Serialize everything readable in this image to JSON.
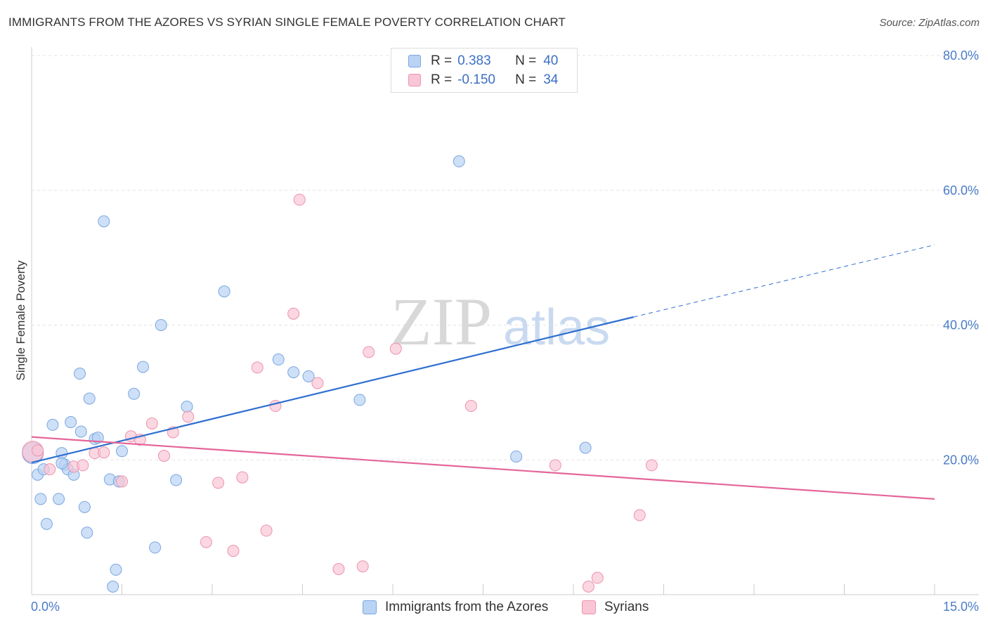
{
  "header": {
    "title": "IMMIGRANTS FROM THE AZORES VS SYRIAN SINGLE FEMALE POVERTY CORRELATION CHART",
    "source": "Source: ZipAtlas.com"
  },
  "watermark": {
    "zip": "ZIP",
    "atlas": "atlas"
  },
  "legend": {
    "series": [
      {
        "r_label": "R =",
        "r_value": "0.383",
        "n_label": "N =",
        "n_value": "40",
        "fill": "#b9d3f4",
        "stroke": "#7aa6e0"
      },
      {
        "r_label": "R =",
        "r_value": "-0.150",
        "n_label": "N =",
        "n_value": "34",
        "fill": "#f9c6d5",
        "stroke": "#ec93ae"
      }
    ]
  },
  "bottom_legend": {
    "azores": "Immigrants from the Azores",
    "syrians": "Syrians"
  },
  "colors": {
    "blue_fill": "#b9d3f4",
    "blue_stroke": "#7aa6e0",
    "blue_line": "#2e6fd0",
    "pink_fill": "#f9c6d5",
    "pink_stroke": "#ec93ae",
    "pink_line": "#e4669a",
    "grid": "#e3e3e3",
    "axis": "#cccccc"
  },
  "chart_data": {
    "type": "scatter",
    "title": "IMMIGRANTS FROM THE AZORES VS SYRIAN SINGLE FEMALE POVERTY CORRELATION CHART",
    "xlabel": "",
    "ylabel": "Single Female Poverty",
    "xlim": [
      0,
      15
    ],
    "ylim": [
      0,
      80
    ],
    "x_tick_labels": [
      {
        "value": 0,
        "label": "0.0%"
      },
      {
        "value": 15,
        "label": "15.0%"
      }
    ],
    "y_tick_labels": [
      {
        "value": 20,
        "label": "20.0%"
      },
      {
        "value": 40,
        "label": "40.0%"
      },
      {
        "value": 60,
        "label": "60.0%"
      },
      {
        "value": 80,
        "label": "80.0%"
      }
    ],
    "grid": true,
    "legend_position": "top-center",
    "series": [
      {
        "name": "Immigrants from the Azores",
        "r": 0.383,
        "n": 40,
        "points": [
          [
            0.02,
            21.0
          ],
          [
            0.1,
            17.8
          ],
          [
            0.15,
            14.2
          ],
          [
            0.2,
            18.6
          ],
          [
            0.25,
            10.5
          ],
          [
            0.35,
            25.2
          ],
          [
            0.45,
            14.2
          ],
          [
            0.5,
            21.0
          ],
          [
            0.55,
            19.3
          ],
          [
            0.6,
            18.6
          ],
          [
            0.65,
            25.6
          ],
          [
            0.7,
            17.8
          ],
          [
            0.8,
            32.8
          ],
          [
            0.82,
            24.2
          ],
          [
            0.88,
            13.0
          ],
          [
            0.92,
            9.2
          ],
          [
            0.96,
            29.1
          ],
          [
            1.05,
            23.1
          ],
          [
            1.1,
            23.3
          ],
          [
            1.2,
            55.4
          ],
          [
            1.3,
            17.1
          ],
          [
            1.4,
            3.7
          ],
          [
            1.45,
            16.8
          ],
          [
            1.5,
            21.3
          ],
          [
            1.7,
            29.8
          ],
          [
            1.85,
            33.8
          ],
          [
            2.05,
            7.0
          ],
          [
            2.15,
            40.0
          ],
          [
            2.4,
            17.0
          ],
          [
            2.58,
            27.9
          ],
          [
            3.2,
            45.0
          ],
          [
            4.1,
            34.9
          ],
          [
            4.35,
            33.0
          ],
          [
            4.6,
            32.4
          ],
          [
            5.45,
            28.9
          ],
          [
            7.1,
            64.3
          ],
          [
            8.05,
            20.5
          ],
          [
            9.2,
            21.8
          ],
          [
            1.35,
            1.2
          ],
          [
            0.5,
            19.5
          ]
        ],
        "trend": {
          "x0": 0,
          "y0": 19.6,
          "x1": 10.0,
          "y1": 41.2,
          "dash_x1": 15.0,
          "dash_y1": 51.9
        }
      },
      {
        "name": "Syrians",
        "r": -0.15,
        "n": 34,
        "points": [
          [
            0.02,
            21.2
          ],
          [
            0.3,
            18.6
          ],
          [
            0.7,
            19.0
          ],
          [
            0.85,
            19.2
          ],
          [
            1.05,
            21.0
          ],
          [
            1.2,
            21.1
          ],
          [
            1.5,
            16.8
          ],
          [
            1.65,
            23.5
          ],
          [
            1.8,
            23.0
          ],
          [
            2.0,
            25.4
          ],
          [
            2.2,
            20.6
          ],
          [
            2.35,
            24.1
          ],
          [
            2.6,
            26.4
          ],
          [
            2.9,
            7.8
          ],
          [
            3.1,
            16.6
          ],
          [
            3.35,
            6.5
          ],
          [
            3.5,
            17.4
          ],
          [
            3.75,
            33.7
          ],
          [
            3.9,
            9.5
          ],
          [
            4.05,
            28.0
          ],
          [
            4.35,
            41.7
          ],
          [
            4.45,
            58.6
          ],
          [
            4.75,
            31.4
          ],
          [
            5.1,
            3.8
          ],
          [
            5.5,
            4.2
          ],
          [
            5.6,
            36.0
          ],
          [
            6.05,
            36.5
          ],
          [
            7.3,
            28.0
          ],
          [
            8.7,
            19.2
          ],
          [
            9.25,
            1.2
          ],
          [
            9.4,
            2.5
          ],
          [
            10.1,
            11.8
          ],
          [
            10.3,
            19.2
          ],
          [
            0.1,
            21.4
          ]
        ],
        "trend": {
          "x0": 0,
          "y0": 23.4,
          "x1": 15.0,
          "y1": 14.2
        }
      }
    ]
  }
}
